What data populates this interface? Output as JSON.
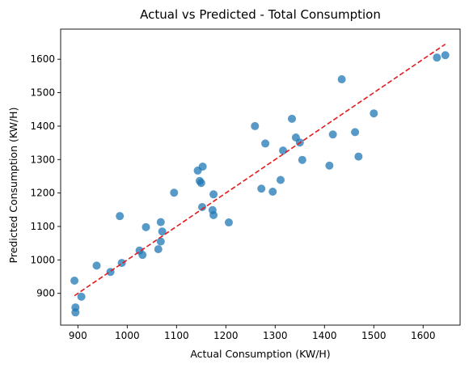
{
  "chart_data": {
    "type": "scatter",
    "title": "Actual vs Predicted - Total Consumption",
    "xlabel": "Actual Consumption (KW/H)",
    "ylabel": "Predicted Consumption (KW/H)",
    "xlim": [
      865,
      1675
    ],
    "ylim": [
      805,
      1690
    ],
    "xticks": [
      900,
      1000,
      1100,
      1200,
      1300,
      1400,
      1500,
      1600
    ],
    "yticks": [
      900,
      1000,
      1100,
      1200,
      1300,
      1400,
      1500,
      1600
    ],
    "grid": false,
    "points": [
      {
        "x": 893,
        "y": 938
      },
      {
        "x": 895,
        "y": 858
      },
      {
        "x": 895,
        "y": 843
      },
      {
        "x": 907,
        "y": 890
      },
      {
        "x": 938,
        "y": 983
      },
      {
        "x": 966,
        "y": 964
      },
      {
        "x": 985,
        "y": 1131
      },
      {
        "x": 989,
        "y": 991
      },
      {
        "x": 1025,
        "y": 1028
      },
      {
        "x": 1031,
        "y": 1015
      },
      {
        "x": 1038,
        "y": 1098
      },
      {
        "x": 1063,
        "y": 1032
      },
      {
        "x": 1068,
        "y": 1113
      },
      {
        "x": 1068,
        "y": 1055
      },
      {
        "x": 1071,
        "y": 1085
      },
      {
        "x": 1095,
        "y": 1201
      },
      {
        "x": 1143,
        "y": 1267
      },
      {
        "x": 1147,
        "y": 1236
      },
      {
        "x": 1150,
        "y": 1230
      },
      {
        "x": 1153,
        "y": 1279
      },
      {
        "x": 1152,
        "y": 1158
      },
      {
        "x": 1173,
        "y": 1149
      },
      {
        "x": 1175,
        "y": 1196
      },
      {
        "x": 1175,
        "y": 1134
      },
      {
        "x": 1206,
        "y": 1112
      },
      {
        "x": 1259,
        "y": 1400
      },
      {
        "x": 1272,
        "y": 1213
      },
      {
        "x": 1280,
        "y": 1348
      },
      {
        "x": 1295,
        "y": 1204
      },
      {
        "x": 1311,
        "y": 1239
      },
      {
        "x": 1316,
        "y": 1327
      },
      {
        "x": 1334,
        "y": 1422
      },
      {
        "x": 1342,
        "y": 1366
      },
      {
        "x": 1350,
        "y": 1351
      },
      {
        "x": 1355,
        "y": 1299
      },
      {
        "x": 1410,
        "y": 1282
      },
      {
        "x": 1417,
        "y": 1375
      },
      {
        "x": 1435,
        "y": 1540
      },
      {
        "x": 1462,
        "y": 1382
      },
      {
        "x": 1469,
        "y": 1309
      },
      {
        "x": 1500,
        "y": 1438
      },
      {
        "x": 1628,
        "y": 1605
      },
      {
        "x": 1645,
        "y": 1612
      }
    ],
    "reference_line": {
      "x": [
        893,
        1645
      ],
      "y": [
        893,
        1645
      ],
      "style": "dashed"
    },
    "colors": {
      "points": "#1f77b4",
      "reference_line": "#e41a1c"
    }
  }
}
